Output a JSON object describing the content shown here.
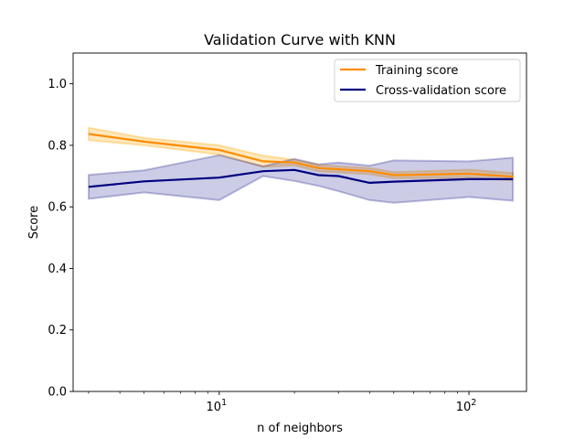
{
  "chart_data": {
    "type": "line",
    "title": "Validation Curve with KNN",
    "xlabel": "n of neighbors",
    "ylabel": "Score",
    "xscale": "log",
    "xlim": [
      2.6,
      170
    ],
    "ylim": [
      0.0,
      1.1
    ],
    "grid": false,
    "legend_position": "top-right",
    "x": [
      3,
      5,
      10,
      15,
      20,
      25,
      30,
      40,
      50,
      100,
      150
    ],
    "x_ticks": [
      {
        "value": 10,
        "base": "10",
        "exp": "1"
      },
      {
        "value": 100,
        "base": "10",
        "exp": "2"
      }
    ],
    "y_ticks": [
      {
        "value": 0.0,
        "label": "0.0"
      },
      {
        "value": 0.2,
        "label": "0.2"
      },
      {
        "value": 0.4,
        "label": "0.4"
      },
      {
        "value": 0.6,
        "label": "0.6"
      },
      {
        "value": 0.8,
        "label": "0.8"
      },
      {
        "value": 1.0,
        "label": "1.0"
      }
    ],
    "series": [
      {
        "name": "Training score",
        "color": "#ff8c00",
        "band_color": "#ffa500",
        "values": [
          0.837,
          0.812,
          0.785,
          0.748,
          0.744,
          0.726,
          0.722,
          0.716,
          0.703,
          0.708,
          0.698
        ],
        "lower": [
          0.817,
          0.8,
          0.77,
          0.73,
          0.735,
          0.715,
          0.712,
          0.706,
          0.693,
          0.695,
          0.686
        ],
        "upper": [
          0.857,
          0.824,
          0.8,
          0.766,
          0.753,
          0.737,
          0.732,
          0.726,
          0.713,
          0.721,
          0.71
        ]
      },
      {
        "name": "Cross-validation score",
        "color": "#000080",
        "band_color": "#000080",
        "values": [
          0.665,
          0.683,
          0.695,
          0.716,
          0.72,
          0.703,
          0.7,
          0.678,
          0.682,
          0.69,
          0.69
        ],
        "lower": [
          0.626,
          0.647,
          0.622,
          0.7,
          0.684,
          0.668,
          0.651,
          0.622,
          0.613,
          0.632,
          0.62
        ],
        "upper": [
          0.704,
          0.719,
          0.768,
          0.732,
          0.756,
          0.738,
          0.744,
          0.734,
          0.751,
          0.748,
          0.76
        ]
      }
    ]
  }
}
